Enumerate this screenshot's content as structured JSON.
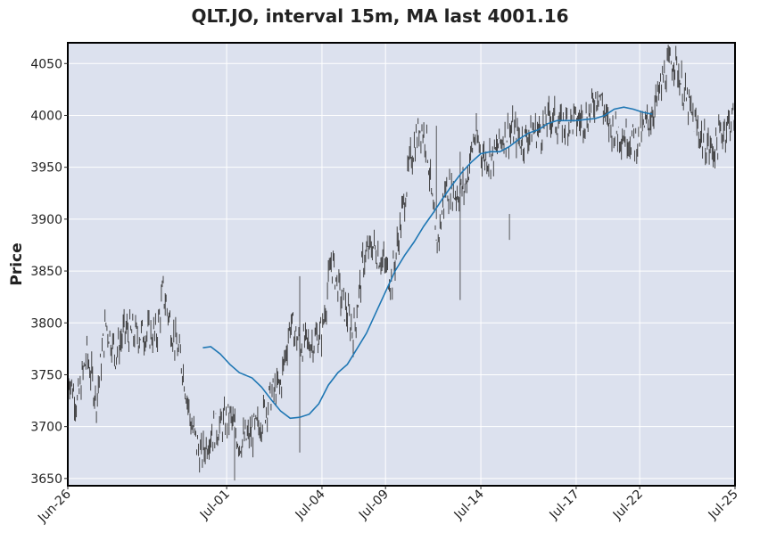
{
  "chart_data": {
    "type": "line",
    "title": "QLT.JO, interval 15m, MA last 4001.16",
    "ylabel": "Price",
    "xlabel": "",
    "ylim": [
      3643,
      4070
    ],
    "grid": true,
    "colors": {
      "background": "#dce1ee",
      "grid": "#ffffff",
      "price": "#333333",
      "ma": "#1f77b4"
    },
    "x_ticks": [
      {
        "label": "Jun-26",
        "day": 0
      },
      {
        "label": "Jul-01",
        "day": 5
      },
      {
        "label": "Jul-04",
        "day": 8
      },
      {
        "label": "Jul-09",
        "day": 10
      },
      {
        "label": "Jul-14",
        "day": 13
      },
      {
        "label": "Jul-17",
        "day": 16
      },
      {
        "label": "Jul-22",
        "day": 18
      },
      {
        "label": "Jul-25",
        "day": 21
      }
    ],
    "y_ticks": [
      3650,
      3700,
      3750,
      3800,
      3850,
      3900,
      3950,
      4000,
      4050
    ],
    "series": [
      {
        "values": [
          [
            0,
            3752
          ],
          [
            0.3,
            3722
          ],
          [
            0.6,
            3770
          ],
          [
            0.9,
            3725
          ],
          [
            1.2,
            3800
          ],
          [
            1.5,
            3770
          ],
          [
            1.8,
            3793
          ],
          [
            2.1,
            3788
          ],
          [
            2.4,
            3790
          ],
          [
            2.8,
            3788
          ],
          [
            3.0,
            3830
          ],
          [
            3.3,
            3790
          ],
          [
            3.6,
            3760
          ],
          [
            3.9,
            3700
          ],
          [
            4.2,
            3670
          ],
          [
            4.5,
            3695
          ],
          [
            4.8,
            3700
          ],
          [
            5.1,
            3710
          ],
          [
            5.4,
            3685
          ],
          [
            5.7,
            3690
          ],
          [
            6.0,
            3700
          ],
          [
            6.4,
            3730
          ],
          [
            6.7,
            3740
          ],
          [
            7.0,
            3800
          ],
          [
            7.3,
            3780
          ],
          [
            7.6,
            3780
          ],
          [
            8.0,
            3790
          ],
          [
            8.3,
            3860
          ],
          [
            8.6,
            3825
          ],
          [
            9.0,
            3790
          ],
          [
            9.3,
            3860
          ],
          [
            9.6,
            3875
          ],
          [
            9.9,
            3860
          ],
          [
            10.2,
            3840
          ],
          [
            10.5,
            3900
          ],
          [
            10.8,
            3960
          ],
          [
            11.1,
            3990
          ],
          [
            11.3,
            3975
          ],
          [
            11.6,
            3870
          ],
          [
            11.9,
            3930
          ],
          [
            12.2,
            3925
          ],
          [
            12.5,
            3930
          ],
          [
            12.8,
            3980
          ],
          [
            13.1,
            3960
          ],
          [
            13.4,
            3960
          ],
          [
            13.7,
            3980
          ],
          [
            14.0,
            3985
          ],
          [
            14.3,
            3975
          ],
          [
            14.6,
            3985
          ],
          [
            14.9,
            3985
          ],
          [
            15.2,
            4000
          ],
          [
            15.5,
            3990
          ],
          [
            15.8,
            3995
          ],
          [
            16.1,
            3995
          ],
          [
            16.4,
            4000
          ],
          [
            16.7,
            4025
          ],
          [
            17.0,
            3990
          ],
          [
            17.3,
            3985
          ],
          [
            17.6,
            3980
          ],
          [
            17.9,
            3975
          ],
          [
            18.2,
            3990
          ],
          [
            18.5,
            4010
          ],
          [
            18.8,
            4040
          ],
          [
            19.1,
            4055
          ],
          [
            19.4,
            4020
          ],
          [
            19.7,
            3995
          ],
          [
            20.0,
            3975
          ],
          [
            20.3,
            3965
          ],
          [
            20.6,
            3985
          ],
          [
            21.0,
            4000
          ]
        ]
      },
      {
        "values": [
          [
            4.25,
            3776
          ],
          [
            4.5,
            3777
          ],
          [
            4.8,
            3770
          ],
          [
            5.1,
            3760
          ],
          [
            5.4,
            3752
          ],
          [
            5.8,
            3747
          ],
          [
            6.1,
            3738
          ],
          [
            6.4,
            3726
          ],
          [
            6.7,
            3715
          ],
          [
            7.0,
            3708
          ],
          [
            7.3,
            3709
          ],
          [
            7.6,
            3712
          ],
          [
            7.9,
            3722
          ],
          [
            8.2,
            3740
          ],
          [
            8.5,
            3752
          ],
          [
            8.8,
            3760
          ],
          [
            9.1,
            3775
          ],
          [
            9.4,
            3790
          ],
          [
            9.7,
            3810
          ],
          [
            10.0,
            3830
          ],
          [
            10.3,
            3850
          ],
          [
            10.6,
            3865
          ],
          [
            10.9,
            3878
          ],
          [
            11.2,
            3893
          ],
          [
            11.5,
            3906
          ],
          [
            11.8,
            3920
          ],
          [
            12.1,
            3933
          ],
          [
            12.4,
            3945
          ],
          [
            12.7,
            3955
          ],
          [
            13.0,
            3963
          ],
          [
            13.3,
            3965
          ],
          [
            13.6,
            3965
          ],
          [
            13.9,
            3970
          ],
          [
            14.2,
            3977
          ],
          [
            14.5,
            3983
          ],
          [
            14.8,
            3986
          ],
          [
            15.1,
            3992
          ],
          [
            15.4,
            3995
          ],
          [
            15.7,
            3995
          ],
          [
            16.0,
            3995
          ],
          [
            16.3,
            3996
          ],
          [
            16.6,
            3997
          ],
          [
            16.9,
            4000
          ],
          [
            17.2,
            4006
          ],
          [
            17.5,
            4008
          ],
          [
            17.8,
            4006
          ],
          [
            18.1,
            4003
          ],
          [
            18.4,
            4001.16
          ]
        ]
      }
    ]
  }
}
